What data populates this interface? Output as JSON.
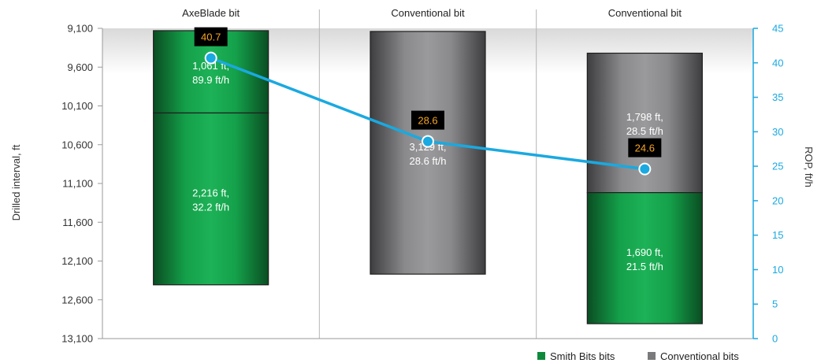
{
  "colors": {
    "smith": "#0f8a3c",
    "conventional": "#7a7a7c",
    "rop_line": "#1aa9e0",
    "callout_bg": "#000000",
    "callout_text": "#f5a623",
    "grid_band": "#e6e6e6"
  },
  "chart_data": {
    "type": "bar",
    "categories": [
      "AxeBlade bit",
      "Conventional bit",
      "Conventional bit"
    ],
    "left_axis": {
      "label": "Drilled interval, ft",
      "range": [
        9100,
        13100
      ],
      "inverted": true,
      "ticks": [
        "9,100",
        "9,600",
        "10,100",
        "10,600",
        "11,100",
        "11,600",
        "12,100",
        "12,600",
        "13,100"
      ]
    },
    "right_axis": {
      "label": "ROP, ft/h",
      "range": [
        0,
        45
      ],
      "ticks": [
        "0",
        "5",
        "10",
        "15",
        "20",
        "25",
        "30",
        "35",
        "40",
        "45"
      ]
    },
    "runs": [
      {
        "category": "AxeBlade bit",
        "segments": [
          {
            "series": "Smith Bits bits",
            "start": 9130,
            "end": 10191,
            "label_line1": "1,061 ft,",
            "label_line2": "89.9 ft/h"
          },
          {
            "series": "Smith Bits bits",
            "start": 10191,
            "end": 12407,
            "label_line1": "2,216 ft,",
            "label_line2": "32.2 ft/h"
          }
        ],
        "rop": 40.7,
        "rop_label": "40.7"
      },
      {
        "category": "Conventional bit",
        "segments": [
          {
            "series": "Conventional bits",
            "start": 9140,
            "end": 12269,
            "label_line1": "3,129 ft,",
            "label_line2": "28.6 ft/h"
          }
        ],
        "rop": 28.6,
        "rop_label": "28.6"
      },
      {
        "category": "Conventional bit",
        "segments": [
          {
            "series": "Conventional bits",
            "start": 9420,
            "end": 11218,
            "label_line1": "1,798 ft,",
            "label_line2": "28.5 ft/h"
          },
          {
            "series": "Smith Bits bits",
            "start": 11218,
            "end": 12908,
            "label_line1": "1,690 ft,",
            "label_line2": "21.5 ft/h"
          }
        ],
        "rop": 24.6,
        "rop_label": "24.6"
      }
    ],
    "legend": [
      {
        "name": "Smith Bits bits",
        "color": "#0f8a3c"
      },
      {
        "name": "Conventional bits",
        "color": "#7a7a7c"
      }
    ],
    "legend_position": "bottom-right",
    "grid": true
  }
}
